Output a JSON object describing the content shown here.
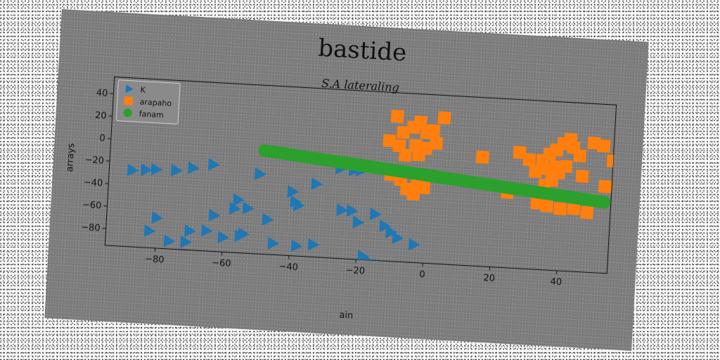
{
  "chart_data": {
    "type": "scatter",
    "title": "bastide",
    "subtitle": "S.A lateraling",
    "xlabel": "ain",
    "ylabel": "arrays",
    "xlim": [
      -95,
      55
    ],
    "ylim": [
      -95,
      55
    ],
    "xticks": [
      -80,
      -60,
      -40,
      -20,
      0,
      20,
      40
    ],
    "yticks": [
      -80,
      -60,
      -40,
      -20,
      0,
      20,
      40
    ],
    "grid": false,
    "legend_position": "top-left",
    "series": [
      {
        "name": "K",
        "marker": "triangle-right",
        "color": "#1f77b4",
        "points": [
          [
            -88,
            -27
          ],
          [
            -84,
            -26
          ],
          [
            -81,
            -25
          ],
          [
            -75,
            -25
          ],
          [
            -70,
            -22
          ],
          [
            -64,
            -18
          ],
          [
            -50,
            -24
          ],
          [
            -40,
            -38
          ],
          [
            -39,
            -47
          ],
          [
            -38,
            -50
          ],
          [
            -33,
            -30
          ],
          [
            -26,
            -15
          ],
          [
            -22,
            -16
          ],
          [
            -20,
            -16
          ],
          [
            -18,
            -13
          ],
          [
            -56,
            -48
          ],
          [
            -57,
            -56
          ],
          [
            -53,
            -55
          ],
          [
            -47,
            -64
          ],
          [
            -63,
            -63
          ],
          [
            -80,
            -68
          ],
          [
            -82,
            -80
          ],
          [
            -70,
            -78
          ],
          [
            -65,
            -77
          ],
          [
            -60,
            -82
          ],
          [
            -55,
            -80
          ],
          [
            -54,
            -78
          ],
          [
            -45,
            -85
          ],
          [
            -38,
            -86
          ],
          [
            -33,
            -84
          ],
          [
            -25,
            -52
          ],
          [
            -22,
            -52
          ],
          [
            -20,
            -62
          ],
          [
            -15,
            -54
          ],
          [
            -12,
            -64
          ],
          [
            -10,
            -69
          ],
          [
            -8,
            -74
          ],
          [
            -3,
            -79
          ],
          [
            -76,
            -88
          ],
          [
            -71,
            -88
          ],
          [
            -18,
            -92
          ],
          [
            -17,
            -95
          ],
          [
            -13,
            -99
          ],
          [
            -11,
            -100
          ]
        ]
      },
      {
        "name": "arapaho",
        "marker": "square",
        "color": "#ff7f0e",
        "points": [
          [
            -10,
            34
          ],
          [
            -3,
            30
          ],
          [
            -5,
            25
          ],
          [
            -8,
            20
          ],
          [
            -1,
            21
          ],
          [
            1,
            23
          ],
          [
            4,
            35
          ],
          [
            -12,
            12
          ],
          [
            -9,
            8
          ],
          [
            -4,
            9
          ],
          [
            -1,
            7
          ],
          [
            2,
            12
          ],
          [
            -3,
            1
          ],
          [
            -7,
            0
          ],
          [
            -11,
            -18
          ],
          [
            -8,
            -22
          ],
          [
            -6,
            -30
          ],
          [
            -4,
            -34
          ],
          [
            -3,
            -27
          ],
          [
            -1,
            -28
          ],
          [
            16,
            2
          ],
          [
            24,
            -28
          ],
          [
            27,
            8
          ],
          [
            30,
            2
          ],
          [
            32,
            -8
          ],
          [
            34,
            2
          ],
          [
            36,
            8
          ],
          [
            38,
            12
          ],
          [
            40,
            18
          ],
          [
            42,
            22
          ],
          [
            43,
            15
          ],
          [
            45,
            8
          ],
          [
            41,
            -2
          ],
          [
            39,
            -8
          ],
          [
            37,
            -15
          ],
          [
            35,
            -20
          ],
          [
            33,
            -36
          ],
          [
            36,
            -38
          ],
          [
            40,
            -40
          ],
          [
            44,
            -39
          ],
          [
            46,
            -10
          ],
          [
            49,
            20
          ],
          [
            52,
            18
          ],
          [
            55,
            5
          ],
          [
            53,
            -18
          ],
          [
            48,
            -42
          ],
          [
            38,
            -3
          ],
          [
            35,
            -5
          ]
        ]
      },
      {
        "name": "fanam",
        "marker": "circle",
        "color": "#2ca02c",
        "line_from": [
          -49,
          -3
        ],
        "line_to": [
          53,
          -32
        ]
      }
    ]
  }
}
